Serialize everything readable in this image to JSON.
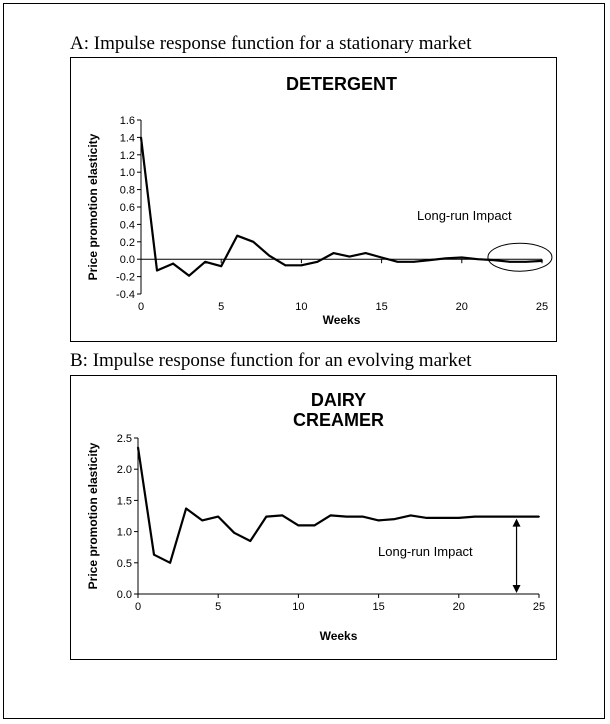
{
  "panels": [
    {
      "heading": "A: Impulse response function for a stationary market"
    },
    {
      "heading": "B: Impulse response function for an evolving market"
    }
  ],
  "chart_data": [
    {
      "type": "line",
      "title_lines": [
        "DETERGENT"
      ],
      "xlabel": "Weeks",
      "ylabel": "Price promotion elasticity",
      "xlim": [
        0,
        25
      ],
      "ylim": [
        -0.4,
        1.6
      ],
      "x_ticks": [
        0,
        5,
        10,
        15,
        20,
        25
      ],
      "y_ticks": [
        -0.4,
        -0.2,
        0.0,
        0.2,
        0.4,
        0.6,
        0.8,
        1.0,
        1.2,
        1.4,
        1.6
      ],
      "y_decimals": 1,
      "annotation": "Long-run Impact",
      "annotation_marker": "ellipse",
      "x": [
        0,
        1,
        2,
        3,
        4,
        5,
        6,
        7,
        8,
        9,
        10,
        11,
        12,
        13,
        14,
        15,
        16,
        17,
        18,
        19,
        20,
        21,
        22,
        23,
        24,
        25
      ],
      "values": [
        1.4,
        -0.13,
        -0.05,
        -0.19,
        -0.03,
        -0.08,
        0.27,
        0.2,
        0.04,
        -0.07,
        -0.07,
        -0.03,
        0.07,
        0.03,
        0.07,
        0.02,
        -0.03,
        -0.03,
        -0.01,
        0.01,
        0.02,
        0.0,
        -0.01,
        -0.03,
        -0.03,
        -0.02
      ]
    },
    {
      "type": "line",
      "title_lines": [
        "DAIRY",
        "CREAMER"
      ],
      "xlabel": "Weeks",
      "ylabel": "Price promotion elasticity",
      "xlim": [
        0,
        25
      ],
      "ylim": [
        0,
        2.5
      ],
      "x_ticks": [
        0,
        5,
        10,
        15,
        20,
        25
      ],
      "y_ticks": [
        0.0,
        0.5,
        1.0,
        1.5,
        2.0,
        2.5
      ],
      "y_decimals": 1,
      "annotation": "Long-run Impact",
      "annotation_marker": "arrow",
      "x": [
        0,
        1,
        2,
        3,
        4,
        5,
        6,
        7,
        8,
        9,
        10,
        11,
        12,
        13,
        14,
        15,
        16,
        17,
        18,
        19,
        20,
        21,
        22,
        23,
        24,
        25
      ],
      "values": [
        2.35,
        0.63,
        0.5,
        1.37,
        1.18,
        1.24,
        0.98,
        0.85,
        1.24,
        1.26,
        1.1,
        1.1,
        1.26,
        1.24,
        1.24,
        1.18,
        1.2,
        1.26,
        1.22,
        1.22,
        1.22,
        1.24,
        1.24,
        1.24,
        1.24,
        1.24
      ]
    }
  ]
}
